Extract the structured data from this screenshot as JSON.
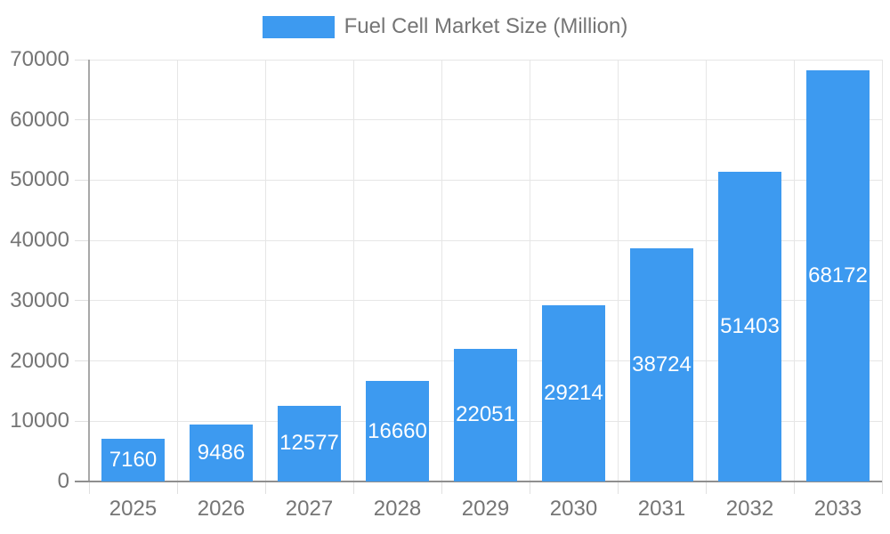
{
  "chart_data": {
    "type": "bar",
    "title": "Fuel Cell Market Size (Million)",
    "categories": [
      "2025",
      "2026",
      "2027",
      "2028",
      "2029",
      "2030",
      "2031",
      "2032",
      "2033"
    ],
    "values": [
      7160,
      9486,
      12577,
      16660,
      22051,
      29214,
      38724,
      51403,
      68172
    ],
    "xlabel": "",
    "ylabel": "",
    "ylim": [
      0,
      70000
    ],
    "ytick_step": 10000,
    "yticks": [
      "0",
      "10000",
      "20000",
      "30000",
      "40000",
      "50000",
      "60000",
      "70000"
    ],
    "grid": "on",
    "legend_position": "top-center",
    "value_labels": "inside-center-white",
    "colors": {
      "bar": "#3D9AF0",
      "value_label": "#ffffff",
      "axis_text": "#757575",
      "gridline": "#e6e6e6",
      "tick": "#e0e0e0",
      "y_axis_line": "#a8a8a8",
      "baseline": "#8f8f8f",
      "background": "#ffffff"
    }
  }
}
